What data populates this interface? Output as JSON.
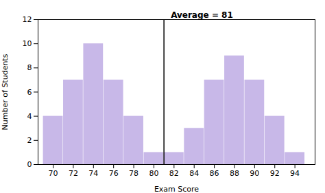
{
  "chart_data": {
    "type": "bar",
    "x": [
      70,
      72,
      74,
      76,
      78,
      80,
      82,
      84,
      86,
      88,
      90,
      92,
      94
    ],
    "values": [
      4,
      7,
      10,
      7,
      4,
      1,
      1,
      3,
      7,
      9,
      7,
      4,
      1
    ],
    "color": "#C8B8E8",
    "xlabel": "Exam Score",
    "ylabel": "Number of Students",
    "xlim": [
      68.5,
      96
    ],
    "ylim": [
      0,
      12
    ],
    "xticks": [
      70,
      72,
      74,
      76,
      78,
      80,
      82,
      84,
      86,
      88,
      90,
      92,
      94
    ],
    "yticks": [
      0,
      2,
      4,
      6,
      8,
      10,
      12
    ],
    "grid": false,
    "vlines": [
      {
        "x": 81,
        "label": "Average = 81",
        "color": "black",
        "line_style": "dashed"
      }
    ]
  }
}
